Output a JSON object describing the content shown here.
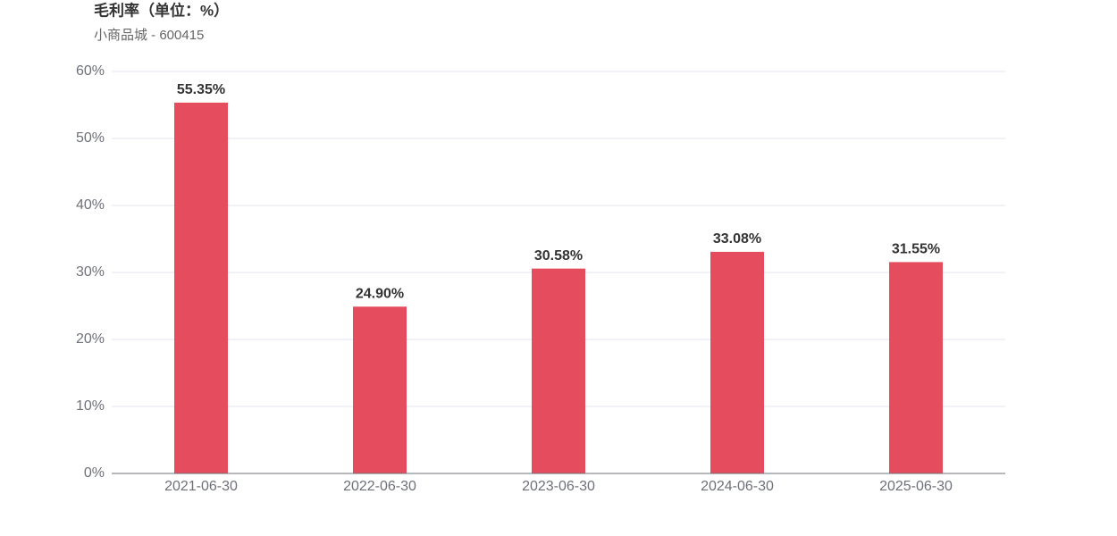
{
  "chart_data": {
    "type": "bar",
    "title": "毛利率（单位：%）",
    "subtitle": "小商品城 - 600415",
    "categories": [
      "2021-06-30",
      "2022-06-30",
      "2023-06-30",
      "2024-06-30",
      "2025-06-30"
    ],
    "values": [
      55.35,
      24.9,
      30.58,
      33.08,
      31.55
    ],
    "value_labels": [
      "55.35%",
      "24.90%",
      "30.58%",
      "33.08%",
      "31.55%"
    ],
    "color": "#e54c5e",
    "ylim": [
      0,
      60
    ],
    "yticks": [
      {
        "value": 0,
        "label": "0%"
      },
      {
        "value": 10,
        "label": "10%"
      },
      {
        "value": 20,
        "label": "20%"
      },
      {
        "value": 30,
        "label": "30%"
      },
      {
        "value": 40,
        "label": "40%"
      },
      {
        "value": 50,
        "label": "50%"
      },
      {
        "value": 60,
        "label": "60%"
      }
    ],
    "grid": true
  }
}
